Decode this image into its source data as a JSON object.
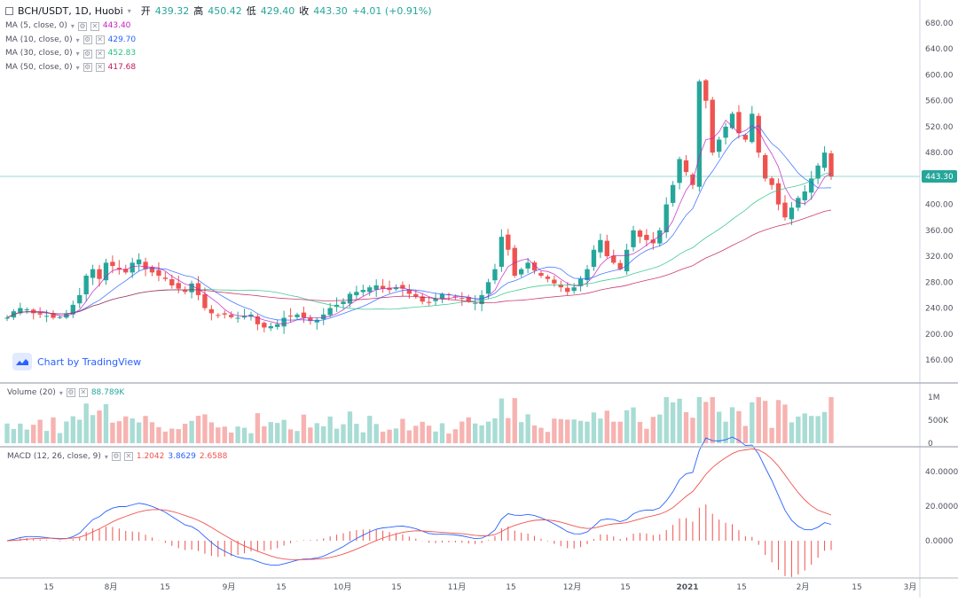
{
  "header": {
    "symbol": "BCH/USDT, 1D, Huobi",
    "open_label": "开",
    "open": "439.32",
    "high_label": "高",
    "high": "450.42",
    "low_label": "低",
    "low": "429.40",
    "close_label": "收",
    "close": "443.30",
    "change": "+4.01 (+0.91%)"
  },
  "ma_legend": [
    {
      "label": "MA (5, close, 0)",
      "value": "443.40",
      "color": "#c41fc1"
    },
    {
      "label": "MA (10, close, 0)",
      "value": "429.70",
      "color": "#2962ff"
    },
    {
      "label": "MA (30, close, 0)",
      "value": "452.83",
      "color": "#26c281"
    },
    {
      "label": "MA (50, close, 0)",
      "value": "417.68",
      "color": "#c2185b"
    }
  ],
  "volume_legend": {
    "label": "Volume (20)",
    "value": "88.789K"
  },
  "macd_legend": {
    "label": "MACD (12, 26, close, 9)",
    "hist": "1.2042",
    "macd": "3.8629",
    "signal": "2.6588"
  },
  "watermark": "Chart by TradingView",
  "price_badge": "443.30",
  "colors": {
    "up": "#26a69a",
    "down": "#ef5350",
    "vol_up": "#a8dcd4",
    "vol_down": "#f6b3b1",
    "macd_line": "#2962ff",
    "signal_line": "#ef5350",
    "hist": "#ef5350"
  },
  "axes": {
    "price_ticks": [
      "680.00",
      "640.00",
      "600.00",
      "560.00",
      "520.00",
      "480.00",
      "440.00",
      "400.00",
      "360.00",
      "320.00",
      "280.00",
      "240.00",
      "200.00",
      "160.00"
    ],
    "volume_ticks": [
      "1M",
      "500K",
      "0"
    ],
    "macd_ticks": [
      "40.0000",
      "20.0000",
      "0.0000"
    ],
    "x_ticks": [
      "15",
      "8月",
      "15",
      "9月",
      "15",
      "10月",
      "15",
      "11月",
      "15",
      "12月",
      "15",
      "2021",
      "15",
      "2月",
      "15",
      "3月"
    ]
  },
  "chart_data": {
    "type": "candlestick",
    "title": "BCH/USDT, 1D, Huobi",
    "y_range": [
      140,
      690
    ],
    "candles_close_approx": [
      225,
      235,
      240,
      238,
      232,
      230,
      228,
      225,
      226,
      232,
      245,
      260,
      290,
      300,
      285,
      310,
      305,
      300,
      295,
      310,
      315,
      300,
      295,
      290,
      285,
      275,
      270,
      265,
      278,
      260,
      240,
      232,
      228,
      230,
      226,
      225,
      228,
      230,
      215,
      210,
      212,
      215,
      225,
      228,
      230,
      225,
      220,
      222,
      230,
      240,
      245,
      250,
      262,
      265,
      268,
      272,
      275,
      270,
      268,
      272,
      270,
      262,
      258,
      250,
      248,
      255,
      262,
      260,
      258,
      255,
      250,
      248,
      260,
      280,
      300,
      350,
      330,
      290,
      300,
      310,
      298,
      290,
      285,
      278,
      272,
      265,
      272,
      285,
      300,
      330,
      345,
      320,
      310,
      300,
      330,
      360,
      350,
      345,
      340,
      360,
      400,
      430,
      470,
      450,
      430,
      590,
      560,
      480,
      500,
      520,
      540,
      510,
      500,
      540,
      480,
      440,
      430,
      400,
      380,
      395,
      410,
      420,
      440,
      460,
      480,
      443
    ],
    "volume_ticks": [
      "1M",
      "500K",
      "0"
    ],
    "macd_ticks": [
      "40.0000",
      "20.0000",
      "0.0000"
    ]
  }
}
